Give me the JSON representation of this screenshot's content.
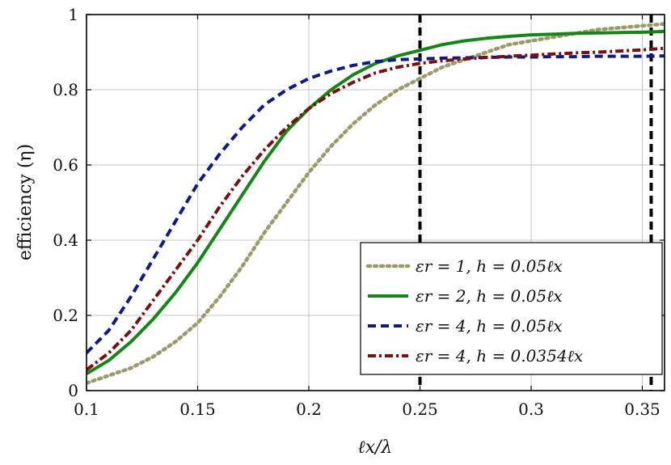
{
  "chart_data": {
    "type": "line",
    "title": "",
    "xlabel": "ℓx/λ",
    "ylabel": "efficiency (η)",
    "xlim": [
      0.1,
      0.36
    ],
    "ylim": [
      0,
      1
    ],
    "xticks": [
      0.1,
      0.15,
      0.2,
      0.25,
      0.3,
      0.35
    ],
    "xtick_labels": [
      "0.1",
      "0.15",
      "0.2",
      "0.25",
      "0.3",
      "0.35"
    ],
    "yticks": [
      0,
      0.2,
      0.4,
      0.6,
      0.8,
      1
    ],
    "ytick_labels": [
      "0",
      "0.2",
      "0.4",
      "0.6",
      "0.8",
      "1"
    ],
    "grid": true,
    "legend_position": "bottom-right",
    "vertical_lines": [
      {
        "x": 0.25,
        "style": "dashed",
        "color": "#000000"
      },
      {
        "x": 0.354,
        "style": "dashed",
        "color": "#000000"
      }
    ],
    "series": [
      {
        "name": "εr = 1, h = 0.05ℓx",
        "color": "#9a9a6a",
        "style": "dotted",
        "x": [
          0.1,
          0.11,
          0.12,
          0.13,
          0.14,
          0.15,
          0.16,
          0.17,
          0.18,
          0.19,
          0.2,
          0.21,
          0.22,
          0.23,
          0.24,
          0.25,
          0.26,
          0.27,
          0.28,
          0.29,
          0.3,
          0.31,
          0.32,
          0.33,
          0.34,
          0.35,
          0.36
        ],
        "y": [
          0.02,
          0.04,
          0.06,
          0.09,
          0.13,
          0.18,
          0.25,
          0.33,
          0.42,
          0.5,
          0.58,
          0.65,
          0.71,
          0.76,
          0.8,
          0.83,
          0.86,
          0.88,
          0.9,
          0.92,
          0.93,
          0.94,
          0.95,
          0.96,
          0.965,
          0.97,
          0.975
        ]
      },
      {
        "name": "εr = 2, h = 0.05ℓx",
        "color": "#158515",
        "style": "solid",
        "x": [
          0.1,
          0.11,
          0.12,
          0.13,
          0.14,
          0.15,
          0.16,
          0.17,
          0.18,
          0.19,
          0.2,
          0.21,
          0.22,
          0.23,
          0.24,
          0.25,
          0.26,
          0.27,
          0.28,
          0.29,
          0.3,
          0.31,
          0.32,
          0.33,
          0.34,
          0.35,
          0.36
        ],
        "y": [
          0.045,
          0.08,
          0.13,
          0.19,
          0.26,
          0.34,
          0.43,
          0.52,
          0.61,
          0.69,
          0.75,
          0.8,
          0.84,
          0.87,
          0.89,
          0.905,
          0.92,
          0.93,
          0.937,
          0.942,
          0.946,
          0.948,
          0.95,
          0.951,
          0.952,
          0.953,
          0.955
        ]
      },
      {
        "name": "εr = 4, h = 0.05ℓx",
        "color": "#101a85",
        "style": "dashed",
        "x": [
          0.1,
          0.11,
          0.12,
          0.13,
          0.14,
          0.15,
          0.16,
          0.17,
          0.18,
          0.19,
          0.2,
          0.21,
          0.22,
          0.23,
          0.24,
          0.25,
          0.26,
          0.27,
          0.28,
          0.29,
          0.3,
          0.31,
          0.32,
          0.33,
          0.34,
          0.35,
          0.36
        ],
        "y": [
          0.1,
          0.16,
          0.25,
          0.35,
          0.45,
          0.55,
          0.63,
          0.7,
          0.76,
          0.8,
          0.83,
          0.85,
          0.865,
          0.875,
          0.88,
          0.882,
          0.884,
          0.885,
          0.886,
          0.887,
          0.887,
          0.888,
          0.888,
          0.889,
          0.889,
          0.889,
          0.89
        ]
      },
      {
        "name": "εr = 4, h = 0.0354ℓx",
        "color": "#7a0f0f",
        "style": "dashdot",
        "x": [
          0.1,
          0.11,
          0.12,
          0.13,
          0.14,
          0.15,
          0.16,
          0.17,
          0.18,
          0.19,
          0.2,
          0.21,
          0.22,
          0.23,
          0.24,
          0.25,
          0.26,
          0.27,
          0.28,
          0.29,
          0.3,
          0.31,
          0.32,
          0.33,
          0.34,
          0.35,
          0.36
        ],
        "y": [
          0.055,
          0.1,
          0.16,
          0.24,
          0.32,
          0.4,
          0.49,
          0.57,
          0.64,
          0.7,
          0.75,
          0.79,
          0.82,
          0.845,
          0.86,
          0.87,
          0.877,
          0.882,
          0.886,
          0.889,
          0.892,
          0.895,
          0.898,
          0.9,
          0.903,
          0.906,
          0.91
        ]
      }
    ]
  }
}
